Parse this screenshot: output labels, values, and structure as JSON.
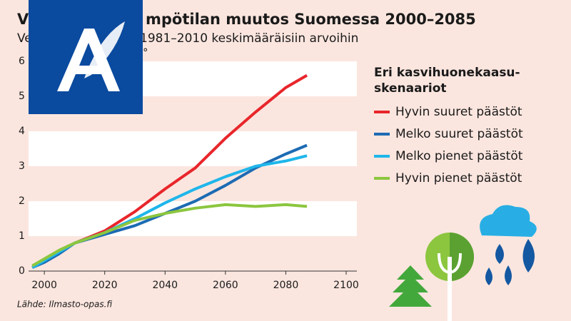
{
  "chart_data": {
    "type": "line",
    "title_parts": [
      "V",
      "mpötilan muutos Suomessa 2000–2085"
    ],
    "subtitle_parts": [
      "Ve",
      "1981–2010 keskimääräisiin arvoihin",
      "°"
    ],
    "legend_title": "Eri kasvihuonekaasu-\nskenaariot",
    "source": "Lähde: Ilmasto-opas.fi",
    "x": [
      1996,
      2000,
      2005,
      2010,
      2020,
      2030,
      2040,
      2050,
      2060,
      2070,
      2080,
      2087
    ],
    "series": [
      {
        "name": "Hyvin suuret päästöt",
        "color": "#e8262b",
        "values": [
          0.1,
          0.3,
          0.55,
          0.8,
          1.15,
          1.7,
          2.35,
          2.95,
          3.8,
          4.55,
          5.25,
          5.6
        ]
      },
      {
        "name": "Melko suuret päästöt",
        "color": "#1d6bb3",
        "values": [
          0.1,
          0.25,
          0.5,
          0.8,
          1.05,
          1.3,
          1.65,
          2.0,
          2.45,
          2.95,
          3.35,
          3.6
        ]
      },
      {
        "name": "Melko pienet päästöt",
        "color": "#1fb6ea",
        "values": [
          0.1,
          0.3,
          0.55,
          0.8,
          1.1,
          1.5,
          1.95,
          2.35,
          2.7,
          3.0,
          3.15,
          3.3
        ]
      },
      {
        "name": "Hyvin pienet päästöt",
        "color": "#8cc63f",
        "values": [
          0.15,
          0.35,
          0.6,
          0.8,
          1.1,
          1.45,
          1.65,
          1.8,
          1.9,
          1.85,
          1.9,
          1.85
        ]
      }
    ],
    "xlim": [
      1995,
      2100
    ],
    "ylim": [
      0,
      6
    ],
    "xticks": [
      2000,
      2020,
      2040,
      2060,
      2080,
      2100
    ],
    "yticks": [
      0,
      1,
      2,
      3,
      4,
      5,
      6
    ],
    "grid": "bands"
  }
}
